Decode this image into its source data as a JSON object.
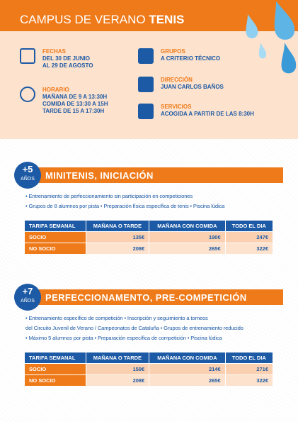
{
  "header": {
    "title_light": "CAMPUS DE VERANO",
    "title_bold": "TENIS"
  },
  "info": [
    {
      "label": "FECHAS",
      "lines": [
        "DEL 30 DE JUNIO",
        "AL 29 DE AGOSTO"
      ]
    },
    {
      "label": "GRUPOS",
      "lines": [
        "A CRITERIO TÉCNICO"
      ]
    },
    {
      "label": "HORARIO",
      "lines": [
        "MAÑANA DE 9 A 13:30H",
        "COMIDA DE 13:30 A 15H",
        "TARDE DE 15 A 17:30H"
      ]
    },
    {
      "label": "DIRECCIÓN",
      "lines": [
        "JUAN CARLOS BAÑOS"
      ]
    },
    {
      "label": "SERVICIOS",
      "lines": [
        "ACOGIDA A PARTIR DE LAS 8:30H"
      ]
    }
  ],
  "sections": [
    {
      "age": "+5",
      "age_unit": "AÑOS",
      "title": "MINITENIS, INICIACIÓN",
      "bullets": [
        "• Entrenamiento de perfeccionamiento sin participación en competiciones",
        "• Grupos de 8 alumnos por pista • Preparación física específica de tenis • Piscina lúdica"
      ],
      "table": {
        "header": [
          "TARIFA SEMANAL",
          "MAÑANA O TARDE",
          "MAÑANA CON COMIDA",
          "TODO EL DIA"
        ],
        "rows": [
          [
            "SOCIO",
            "135€",
            "190€",
            "247€"
          ],
          [
            "NO SOCIO",
            "208€",
            "265€",
            "322€"
          ]
        ]
      }
    },
    {
      "age": "+7",
      "age_unit": "AÑOS",
      "title": "PERFECCIONAMENTO, PRE-COMPETICIÓN",
      "bullets": [
        "• Entrenamiento específico de competición • Inscripción y seguimiento a torneos",
        "del Circuito Juvenil de Verano / Campeonatos de Cataluña • Grupos de entrenamiento reducido",
        "• Máximo 5 alumnos por pista • Preparación específica de competición • Piscina lúdica"
      ],
      "table": {
        "header": [
          "TARIFA SEMANAL",
          "MAÑANA O TARDE",
          "MAÑANA CON COMIDA",
          "TODO EL DIA"
        ],
        "rows": [
          [
            "SOCIO",
            "159€",
            "214€",
            "271€"
          ],
          [
            "NO SOCIO",
            "208€",
            "265€",
            "322€"
          ]
        ]
      }
    }
  ]
}
